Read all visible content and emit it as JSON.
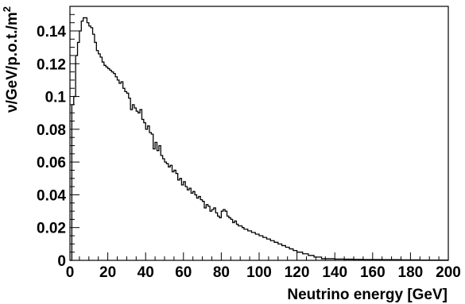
{
  "chart_data": {
    "type": "histogram",
    "xlabel": "Neutrino energy [GeV]",
    "ylabel": "ν/GeV/p.o.t./m",
    "ylabel_superscript": "2",
    "xlim": [
      0,
      200
    ],
    "ylim": [
      0,
      0.155
    ],
    "x_ticks": [
      0,
      20,
      40,
      60,
      80,
      100,
      120,
      140,
      160,
      180,
      200
    ],
    "y_ticks": [
      0,
      0.02,
      0.04,
      0.06,
      0.08,
      0.1,
      0.12,
      0.14
    ],
    "x_tick_labels": [
      "0",
      "20",
      "40",
      "60",
      "80",
      "100",
      "120",
      "140",
      "160",
      "180",
      "200"
    ],
    "y_tick_labels": [
      "0",
      "0.02",
      "0.04",
      "0.06",
      "0.08",
      "0.1",
      "0.12",
      "0.14"
    ],
    "bin_width": 1,
    "bin_edges": [
      0,
      200
    ],
    "values": [
      0.0,
      0.095,
      0.1,
      0.125,
      0.133,
      0.14,
      0.146,
      0.148,
      0.148,
      0.145,
      0.143,
      0.142,
      0.138,
      0.133,
      0.128,
      0.126,
      0.124,
      0.121,
      0.119,
      0.118,
      0.117,
      0.116,
      0.115,
      0.114,
      0.112,
      0.11,
      0.108,
      0.109,
      0.105,
      0.103,
      0.102,
      0.099,
      0.092,
      0.095,
      0.093,
      0.091,
      0.09,
      0.092,
      0.086,
      0.084,
      0.08,
      0.082,
      0.078,
      0.077,
      0.068,
      0.072,
      0.067,
      0.07,
      0.064,
      0.062,
      0.06,
      0.059,
      0.057,
      0.058,
      0.054,
      0.055,
      0.053,
      0.049,
      0.05,
      0.046,
      0.048,
      0.045,
      0.043,
      0.044,
      0.041,
      0.042,
      0.04,
      0.038,
      0.039,
      0.037,
      0.036,
      0.032,
      0.034,
      0.033,
      0.03,
      0.031,
      0.032,
      0.029,
      0.027,
      0.026,
      0.03,
      0.031,
      0.03,
      0.027,
      0.026,
      0.025,
      0.023,
      0.024,
      0.022,
      0.021,
      0.021,
      0.02,
      0.019,
      0.019,
      0.018,
      0.018,
      0.017,
      0.017,
      0.016,
      0.016,
      0.015,
      0.015,
      0.014,
      0.014,
      0.013,
      0.013,
      0.012,
      0.012,
      0.011,
      0.011,
      0.01,
      0.01,
      0.009,
      0.009,
      0.008,
      0.008,
      0.007,
      0.007,
      0.006,
      0.006,
      0.005,
      0.005,
      0.005,
      0.004,
      0.004,
      0.004,
      0.003,
      0.003,
      0.003,
      0.002,
      0.002,
      0.002,
      0.002,
      0.001,
      0.001,
      0.001,
      0.001,
      0.001,
      0.001,
      0.001,
      0.0008,
      0.0008,
      0.0008,
      0.0008,
      0.0008,
      0.0007,
      0.0007,
      0.0007,
      0.0007,
      0.0007,
      0.0006,
      0.0006,
      0.0006,
      0.0006,
      0.0006,
      0.0005,
      0.0005,
      0.0005,
      0.0005,
      0.0005,
      0.0005,
      0.0005,
      0.0005,
      0.0005,
      0.0005,
      0.0004,
      0.0004,
      0.0004,
      0.0004,
      0.0004,
      0.0004,
      0.0004,
      0.0004,
      0.0004,
      0.0004,
      0.0003,
      0.0003,
      0.0003,
      0.0003,
      0.0003,
      0.0003,
      0.0003,
      0.0003,
      0.0003,
      0.0003,
      0.0002,
      0.0002,
      0.0002,
      0.0002,
      0.0002,
      0.0002,
      0.0002,
      0.0002,
      0.0002,
      0.0002,
      0.0002,
      0.0002,
      0.0002,
      0.0002,
      0.0002
    ],
    "grid": false,
    "legend": "none",
    "line_color": "#000000",
    "frame_color": "#000000"
  }
}
